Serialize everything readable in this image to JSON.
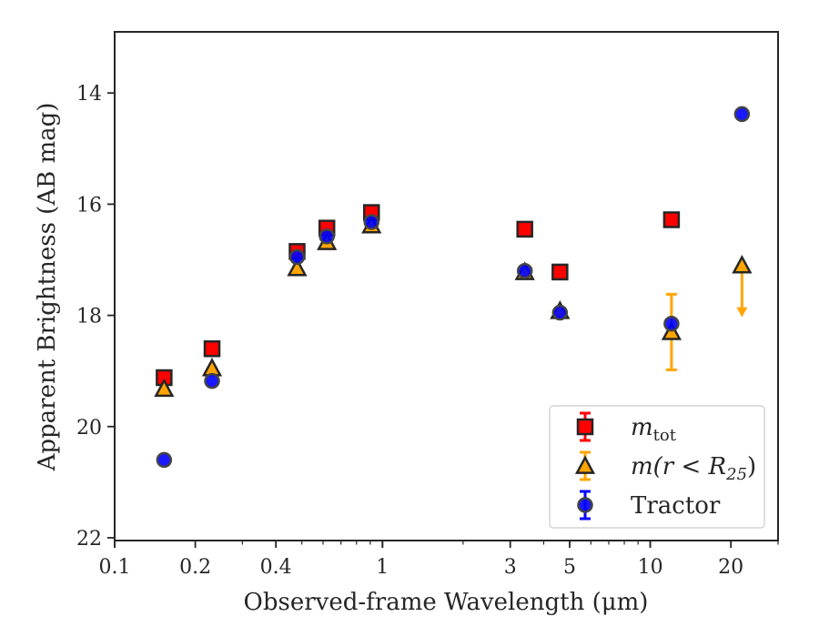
{
  "chart_data": {
    "type": "scatter",
    "xlabel": "Observed-frame Wavelength (μm)",
    "ylabel": "Apparent Brightness (AB mag)",
    "xscale": "log",
    "xlim": [
      0.1,
      30
    ],
    "ylim": [
      22.05,
      12.9
    ],
    "y_inverted": true,
    "x_ticks": [
      {
        "value": 0.1,
        "label": "0.1"
      },
      {
        "value": 0.2,
        "label": "0.2"
      },
      {
        "value": 0.4,
        "label": "0.4"
      },
      {
        "value": 1,
        "label": "1"
      },
      {
        "value": 3,
        "label": "3"
      },
      {
        "value": 5,
        "label": "5"
      },
      {
        "value": 10,
        "label": "10"
      },
      {
        "value": 20,
        "label": "20"
      }
    ],
    "y_ticks": [
      {
        "value": 14,
        "label": "14"
      },
      {
        "value": 16,
        "label": "16"
      },
      {
        "value": 18,
        "label": "18"
      },
      {
        "value": 20,
        "label": "20"
      },
      {
        "value": 22,
        "label": "22"
      }
    ],
    "grid": false,
    "legend_position": "bottom-right",
    "series": [
      {
        "name": "m_tot",
        "legend_main": "m",
        "legend_sub": "tot",
        "marker": "square",
        "fill": "#ff0000",
        "errcolor": "#ff0000",
        "points": [
          {
            "x": 0.153,
            "y": 19.12
          },
          {
            "x": 0.231,
            "y": 18.6
          },
          {
            "x": 0.48,
            "y": 16.85
          },
          {
            "x": 0.62,
            "y": 16.43
          },
          {
            "x": 0.91,
            "y": 16.15
          },
          {
            "x": 3.4,
            "y": 16.45
          },
          {
            "x": 4.6,
            "y": 17.22
          },
          {
            "x": 12.0,
            "y": 16.28
          }
        ]
      },
      {
        "name": "m(r<R25)",
        "legend_main": "m(r < R",
        "legend_sub": "25",
        "legend_end": ")",
        "marker": "triangle",
        "fill": "#ffa500",
        "errcolor": "#ffa500",
        "points": [
          {
            "x": 0.153,
            "y": 19.32
          },
          {
            "x": 0.231,
            "y": 18.95
          },
          {
            "x": 0.48,
            "y": 17.15
          },
          {
            "x": 0.62,
            "y": 16.68
          },
          {
            "x": 0.91,
            "y": 16.38
          },
          {
            "x": 3.4,
            "y": 17.22
          },
          {
            "x": 4.6,
            "y": 17.92
          },
          {
            "x": 12.0,
            "y": 18.3,
            "yerr_low": 17.62,
            "yerr_high": 18.98
          },
          {
            "x": 22.0,
            "y": 17.1,
            "upper_limit": true,
            "arrow_to": 18.0
          }
        ]
      },
      {
        "name": "Tractor",
        "legend_main": "Tractor",
        "marker": "circle",
        "fill": "#0000ff",
        "errcolor": "#0000ff",
        "points": [
          {
            "x": 0.153,
            "y": 20.6
          },
          {
            "x": 0.231,
            "y": 19.18
          },
          {
            "x": 0.48,
            "y": 16.95
          },
          {
            "x": 0.62,
            "y": 16.58
          },
          {
            "x": 0.91,
            "y": 16.32
          },
          {
            "x": 3.4,
            "y": 17.2
          },
          {
            "x": 4.6,
            "y": 17.95
          },
          {
            "x": 12.0,
            "y": 18.15
          },
          {
            "x": 22.0,
            "y": 14.38
          }
        ]
      }
    ]
  }
}
